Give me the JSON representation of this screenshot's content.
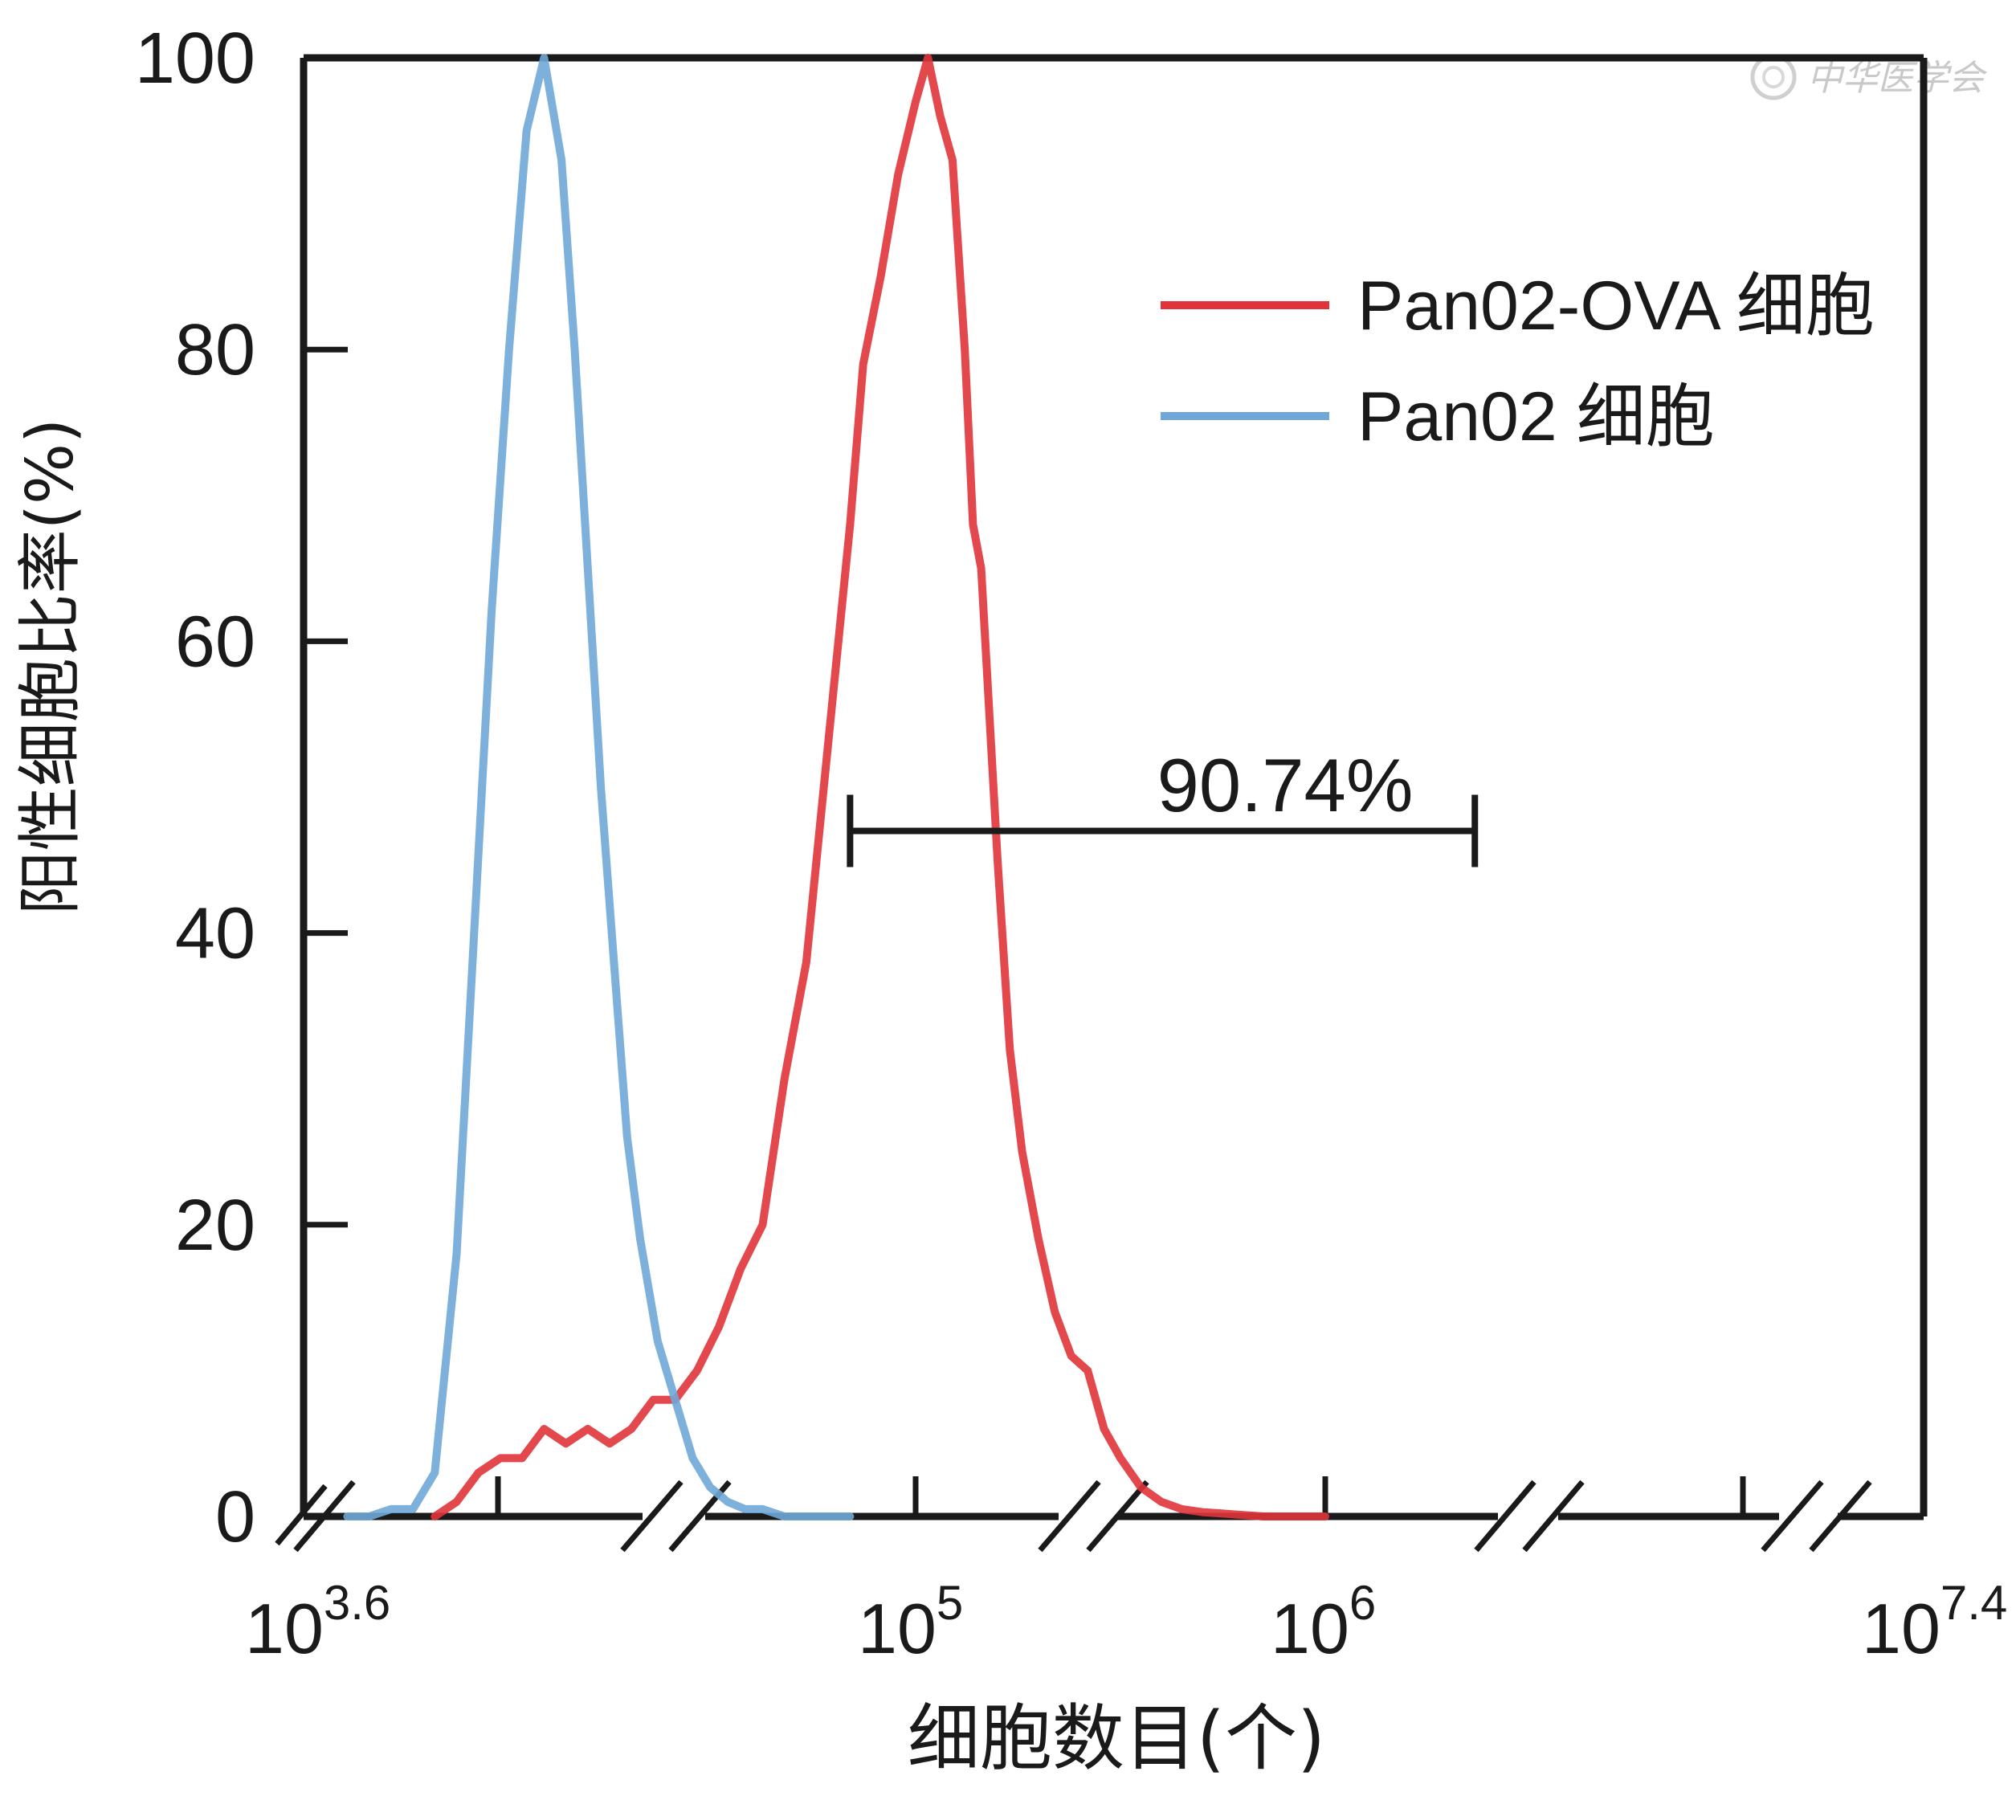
{
  "chart_data": {
    "type": "line",
    "title": "",
    "xlabel": "细胞数目(个)",
    "ylabel": "阳性细胞比率(%)",
    "x_scale": "log10",
    "xlim": [
      3.6,
      7.4
    ],
    "ylim": [
      0,
      100
    ],
    "y_ticks": [
      "0",
      "20",
      "40",
      "60",
      "80",
      "100"
    ],
    "x_tick_labels": [
      {
        "base": "10",
        "exp": "3.6",
        "value": 3.6
      },
      {
        "base": "10",
        "exp": "5",
        "value": 5
      },
      {
        "base": "10",
        "exp": "6",
        "value": 6
      },
      {
        "base": "10",
        "exp": "7.4",
        "value": 7.4
      }
    ],
    "legend_position": "top-right",
    "series": [
      {
        "name": "Pan02-OVA 细胞",
        "color": "#e0343a",
        "x": [
          3.9,
          3.95,
          4.0,
          4.05,
          4.1,
          4.15,
          4.2,
          4.25,
          4.3,
          4.35,
          4.4,
          4.45,
          4.5,
          4.55,
          4.6,
          4.65,
          4.7,
          4.75,
          4.8,
          4.85,
          4.88,
          4.92,
          4.96,
          5.0,
          5.03,
          5.06,
          5.09,
          5.12,
          5.14,
          5.16,
          5.18,
          5.2,
          5.23,
          5.26,
          5.3,
          5.34,
          5.38,
          5.42,
          5.46,
          5.5,
          5.55,
          5.6,
          5.65,
          5.7,
          5.75,
          5.8,
          5.85,
          5.9,
          5.95,
          6.0
        ],
        "y": [
          0,
          1,
          3,
          4,
          4,
          6,
          5,
          6,
          5,
          6,
          8,
          8,
          10,
          13,
          17,
          20,
          30,
          38,
          53,
          68,
          79,
          85,
          92,
          97,
          100,
          96,
          93,
          80,
          68,
          65,
          55,
          45,
          32,
          25,
          19,
          14,
          11,
          10,
          6,
          4,
          2,
          1,
          0.5,
          0.3,
          0.2,
          0.1,
          0,
          0,
          0,
          0
        ]
      },
      {
        "name": "Pan02 细胞",
        "color": "#6fa8d8",
        "x": [
          3.7,
          3.75,
          3.8,
          3.85,
          3.9,
          3.95,
          3.99,
          4.03,
          4.07,
          4.11,
          4.15,
          4.19,
          4.22,
          4.25,
          4.28,
          4.31,
          4.34,
          4.37,
          4.41,
          4.45,
          4.49,
          4.53,
          4.57,
          4.61,
          4.65,
          4.7,
          4.75,
          4.8,
          4.85
        ],
        "y": [
          0,
          0,
          0.5,
          0.5,
          3,
          18,
          40,
          62,
          80,
          95,
          100,
          93,
          80,
          65,
          50,
          38,
          26,
          19,
          12,
          8,
          4,
          2,
          1,
          0.5,
          0.5,
          0,
          0,
          0,
          0
        ]
      }
    ],
    "gate": {
      "label": "90.74%",
      "x_start": 4.85,
      "x_end": 6.35,
      "y": 47
    },
    "watermark": "中华医学会"
  }
}
